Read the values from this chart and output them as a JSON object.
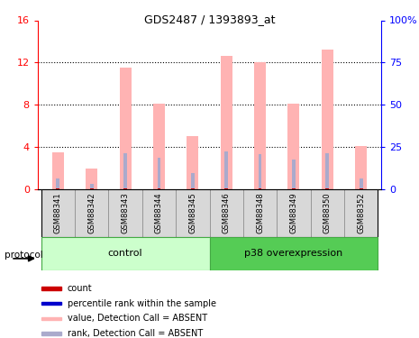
{
  "title": "GDS2487 / 1393893_at",
  "samples": [
    "GSM88341",
    "GSM88342",
    "GSM88343",
    "GSM88344",
    "GSM88345",
    "GSM88346",
    "GSM88348",
    "GSM88349",
    "GSM88350",
    "GSM88352"
  ],
  "pink_values": [
    3.5,
    2.0,
    11.5,
    8.1,
    5.0,
    12.6,
    12.0,
    8.1,
    13.2,
    4.1
  ],
  "blue_values": [
    1.0,
    0.5,
    3.4,
    3.0,
    1.5,
    3.6,
    3.3,
    2.8,
    3.4,
    1.0
  ],
  "red_values": [
    0.12,
    0.12,
    0.12,
    0.12,
    0.12,
    0.12,
    0.12,
    0.12,
    0.12,
    0.12
  ],
  "ylim_left": [
    0,
    16
  ],
  "ylim_right": [
    0,
    100
  ],
  "yticks_left": [
    0,
    4,
    8,
    12,
    16
  ],
  "yticks_right": [
    0,
    25,
    50,
    75,
    100
  ],
  "ytick_labels_left": [
    "0",
    "4",
    "8",
    "12",
    "16"
  ],
  "ytick_labels_right": [
    "0",
    "25",
    "50",
    "75",
    "100%"
  ],
  "pink_color": "#FFB3B3",
  "blue_color": "#AAAACC",
  "red_color": "#CC0000",
  "control_color_light": "#CCFFCC",
  "control_color_dark": "#55CC55",
  "legend_items": [
    {
      "color": "#CC0000",
      "label": "count"
    },
    {
      "color": "#0000CC",
      "label": "percentile rank within the sample"
    },
    {
      "color": "#FFB3B3",
      "label": "value, Detection Call = ABSENT"
    },
    {
      "color": "#AAAACC",
      "label": "rank, Detection Call = ABSENT"
    }
  ],
  "protocol_label": "protocol",
  "pink_bar_width": 0.35,
  "blue_bar_width": 0.1,
  "red_bar_width": 0.1,
  "n_control": 5,
  "n_p38": 5
}
